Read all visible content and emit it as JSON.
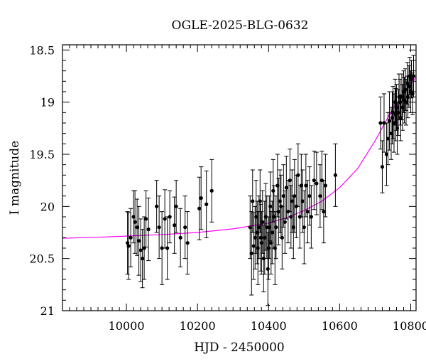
{
  "chart_data": {
    "type": "scatter",
    "title": "OGLE-2025-BLG-0632",
    "xlabel": "HJD - 2450000",
    "ylabel": "I magnitude",
    "xlim": [
      9820,
      10815
    ],
    "ylim": [
      21.0,
      18.45
    ],
    "y_inverted": true,
    "x_major_ticks": [
      10000,
      10200,
      10400,
      10600,
      10800
    ],
    "x_tick_labels": [
      "10000",
      "10200",
      "10400",
      "10600",
      "10800"
    ],
    "y_major_ticks": [
      18.5,
      19,
      19.5,
      20,
      20.5,
      21
    ],
    "y_tick_labels": [
      "18.5",
      "19",
      "19.5",
      "20",
      "20.5",
      "21"
    ],
    "grid": false,
    "colors": {
      "points": "#000000",
      "model": "#ff00ff"
    },
    "series": [
      {
        "type": "scatter_errorbars",
        "points": [
          [
            10003,
            20.35,
            0.3
          ],
          [
            10006,
            20.38,
            0.32
          ],
          [
            10012,
            20.3,
            0.28
          ],
          [
            10020,
            20.1,
            0.25
          ],
          [
            10024,
            20.15,
            0.3
          ],
          [
            10030,
            20.2,
            0.27
          ],
          [
            10035,
            20.33,
            0.33
          ],
          [
            10040,
            20.42,
            0.3
          ],
          [
            10045,
            20.5,
            0.28
          ],
          [
            10050,
            20.4,
            0.3
          ],
          [
            10055,
            20.12,
            0.27
          ],
          [
            10062,
            20.22,
            0.3
          ],
          [
            10085,
            20.0,
            0.25
          ],
          [
            10092,
            20.2,
            0.3
          ],
          [
            10100,
            20.4,
            0.35
          ],
          [
            10108,
            20.12,
            0.28
          ],
          [
            10115,
            20.4,
            0.3
          ],
          [
            10122,
            20.1,
            0.25
          ],
          [
            10135,
            20.18,
            0.27
          ],
          [
            10140,
            20.0,
            0.25
          ],
          [
            10152,
            20.3,
            0.28
          ],
          [
            10165,
            20.2,
            0.3
          ],
          [
            10172,
            20.35,
            0.3
          ],
          [
            10205,
            20.02,
            0.3
          ],
          [
            10210,
            19.92,
            0.3
          ],
          [
            10225,
            19.98,
            0.32
          ],
          [
            10240,
            19.85,
            0.3
          ],
          [
            10348,
            20.2,
            0.3
          ],
          [
            10352,
            20.45,
            0.4
          ],
          [
            10355,
            19.95,
            0.3
          ],
          [
            10358,
            20.38,
            0.32
          ],
          [
            10362,
            20.3,
            0.3
          ],
          [
            10365,
            20.1,
            0.35
          ],
          [
            10368,
            20.25,
            0.3
          ],
          [
            10370,
            20.4,
            0.35
          ],
          [
            10373,
            20.2,
            0.3
          ],
          [
            10376,
            19.95,
            0.3
          ],
          [
            10378,
            20.3,
            0.32
          ],
          [
            10380,
            20.35,
            0.3
          ],
          [
            10383,
            20.15,
            0.3
          ],
          [
            10386,
            20.5,
            0.32
          ],
          [
            10389,
            20.3,
            0.35
          ],
          [
            10392,
            20.1,
            0.32
          ],
          [
            10395,
            20.2,
            0.3
          ],
          [
            10398,
            20.6,
            0.35
          ],
          [
            10400,
            20.4,
            0.3
          ],
          [
            10402,
            20.2,
            0.3
          ],
          [
            10405,
            20.0,
            0.33
          ],
          [
            10407,
            20.35,
            0.3
          ],
          [
            10410,
            20.25,
            0.3
          ],
          [
            10413,
            19.85,
            0.3
          ],
          [
            10415,
            20.1,
            0.3
          ],
          [
            10418,
            20.4,
            0.35
          ],
          [
            10421,
            20.2,
            0.3
          ],
          [
            10425,
            19.8,
            0.3
          ],
          [
            10428,
            20.05,
            0.32
          ],
          [
            10432,
            19.95,
            0.3
          ],
          [
            10435,
            20.0,
            0.3
          ],
          [
            10438,
            20.3,
            0.3
          ],
          [
            10442,
            19.9,
            0.3
          ],
          [
            10446,
            20.15,
            0.3
          ],
          [
            10450,
            19.82,
            0.3
          ],
          [
            10455,
            20.05,
            0.3
          ],
          [
            10460,
            19.75,
            0.3
          ],
          [
            10463,
            20.1,
            0.3
          ],
          [
            10466,
            19.95,
            0.3
          ],
          [
            10470,
            20.2,
            0.3
          ],
          [
            10473,
            19.9,
            0.35
          ],
          [
            10478,
            20.0,
            0.3
          ],
          [
            10483,
            19.7,
            0.3
          ],
          [
            10488,
            20.1,
            0.3
          ],
          [
            10492,
            19.8,
            0.3
          ],
          [
            10496,
            19.95,
            0.3
          ],
          [
            10500,
            20.2,
            0.35
          ],
          [
            10505,
            19.8,
            0.3
          ],
          [
            10510,
            20.05,
            0.3
          ],
          [
            10515,
            19.9,
            0.28
          ],
          [
            10520,
            20.1,
            0.3
          ],
          [
            10528,
            19.75,
            0.28
          ],
          [
            10535,
            19.78,
            0.3
          ],
          [
            10545,
            19.9,
            0.3
          ],
          [
            10550,
            19.75,
            0.28
          ],
          [
            10555,
            20.05,
            0.3
          ],
          [
            10560,
            19.8,
            0.3
          ],
          [
            10588,
            19.7,
            0.3
          ],
          [
            10715,
            19.2,
            0.25
          ],
          [
            10720,
            19.62,
            0.25
          ],
          [
            10725,
            19.2,
            0.28
          ],
          [
            10732,
            19.5,
            0.3
          ],
          [
            10736,
            19.35,
            0.25
          ],
          [
            10740,
            19.18,
            0.28
          ],
          [
            10745,
            19.3,
            0.25
          ],
          [
            10748,
            19.15,
            0.25
          ],
          [
            10750,
            19.1,
            0.25
          ],
          [
            10753,
            19.2,
            0.28
          ],
          [
            10756,
            19.0,
            0.22
          ],
          [
            10758,
            19.12,
            0.25
          ],
          [
            10760,
            19.05,
            0.22
          ],
          [
            10762,
            19.25,
            0.25
          ],
          [
            10765,
            19.1,
            0.22
          ],
          [
            10767,
            18.95,
            0.22
          ],
          [
            10770,
            19.0,
            0.22
          ],
          [
            10772,
            19.15,
            0.22
          ],
          [
            10775,
            18.95,
            0.22
          ],
          [
            10777,
            19.05,
            0.22
          ],
          [
            10780,
            18.9,
            0.2
          ],
          [
            10782,
            18.98,
            0.22
          ],
          [
            10785,
            18.88,
            0.2
          ],
          [
            10787,
            19.0,
            0.22
          ],
          [
            10790,
            18.82,
            0.2
          ],
          [
            10792,
            18.95,
            0.2
          ],
          [
            10795,
            18.85,
            0.2
          ],
          [
            10797,
            18.75,
            0.18
          ],
          [
            10800,
            18.9,
            0.2
          ],
          [
            10802,
            18.78,
            0.18
          ],
          [
            10805,
            18.92,
            0.2
          ],
          [
            10808,
            18.75,
            0.2
          ]
        ]
      },
      {
        "type": "model_curve",
        "points": [
          [
            9820,
            20.305
          ],
          [
            9900,
            20.298
          ],
          [
            10000,
            20.285
          ],
          [
            10100,
            20.27
          ],
          [
            10200,
            20.25
          ],
          [
            10300,
            20.215
          ],
          [
            10400,
            20.16
          ],
          [
            10450,
            20.11
          ],
          [
            10500,
            20.04
          ],
          [
            10550,
            19.95
          ],
          [
            10600,
            19.82
          ],
          [
            10650,
            19.64
          ],
          [
            10700,
            19.37
          ],
          [
            10750,
            19.06
          ],
          [
            10780,
            18.92
          ],
          [
            10815,
            18.76
          ]
        ]
      }
    ]
  }
}
